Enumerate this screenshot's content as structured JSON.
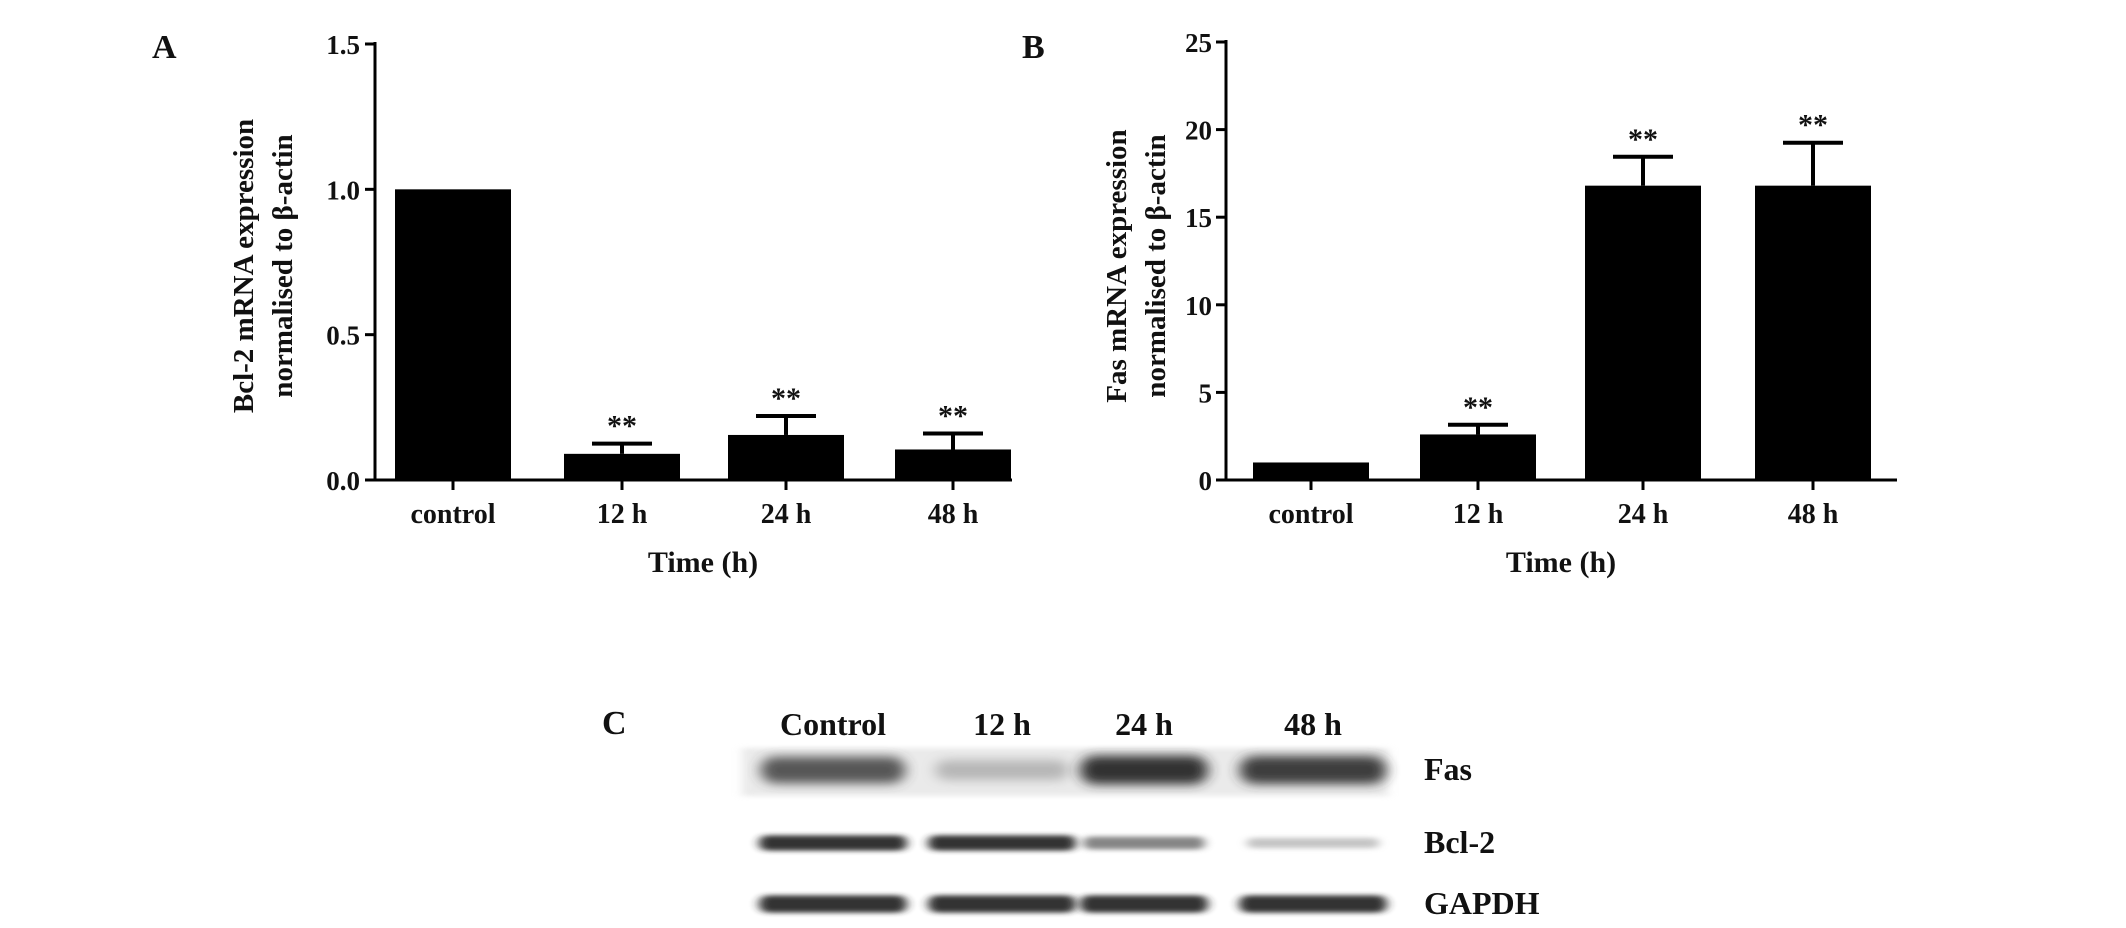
{
  "chart_data": [
    {
      "panel_label": "A",
      "type": "bar",
      "categories": [
        "control",
        "12 h",
        "24 h",
        "48 h"
      ],
      "series": [
        {
          "values": [
            1.0,
            0.09,
            0.155,
            0.105
          ],
          "error": [
            0.0,
            0.035,
            0.065,
            0.055
          ],
          "annotations": [
            "",
            "**",
            "**",
            "**"
          ]
        }
      ],
      "xlabel": "Time (h)",
      "ylabel_lines": [
        "Bcl-2 mRNA expression",
        "normalised to β-actin"
      ],
      "ylim": [
        0,
        1.5
      ],
      "yticks": [
        0,
        0.5,
        1.0,
        1.5
      ],
      "ytick_labels": [
        "0.0",
        "0.5",
        "1.0",
        "1.5"
      ],
      "grid": false,
      "bar_color": "#000000"
    },
    {
      "panel_label": "B",
      "type": "bar",
      "categories": [
        "control",
        "12 h",
        "24 h",
        "48 h"
      ],
      "series": [
        {
          "values": [
            1.0,
            2.6,
            16.8,
            16.8
          ],
          "error": [
            0.0,
            0.55,
            1.65,
            2.45
          ],
          "annotations": [
            "",
            "**",
            "**",
            "**"
          ]
        }
      ],
      "xlabel": "Time (h)",
      "ylabel_lines": [
        "Fas mRNA expression",
        "normalised to β-actin"
      ],
      "ylim": [
        0,
        25
      ],
      "yticks": [
        0,
        5,
        10,
        15,
        20,
        25
      ],
      "ytick_labels": [
        "0",
        "5",
        "10",
        "15",
        "20",
        "25"
      ],
      "grid": false,
      "bar_color": "#000000"
    }
  ],
  "western_blot": {
    "panel_label": "C",
    "lanes": [
      "Control",
      "12 h",
      "24 h",
      "48 h"
    ],
    "rows": [
      {
        "label": "Fas",
        "intensity": [
          0.75,
          0.25,
          0.9,
          0.85
        ]
      },
      {
        "label": "Bcl-2",
        "intensity": [
          0.9,
          0.9,
          0.55,
          0.2
        ]
      },
      {
        "label": "GAPDH",
        "intensity": [
          0.9,
          0.9,
          0.9,
          0.9
        ]
      }
    ]
  }
}
